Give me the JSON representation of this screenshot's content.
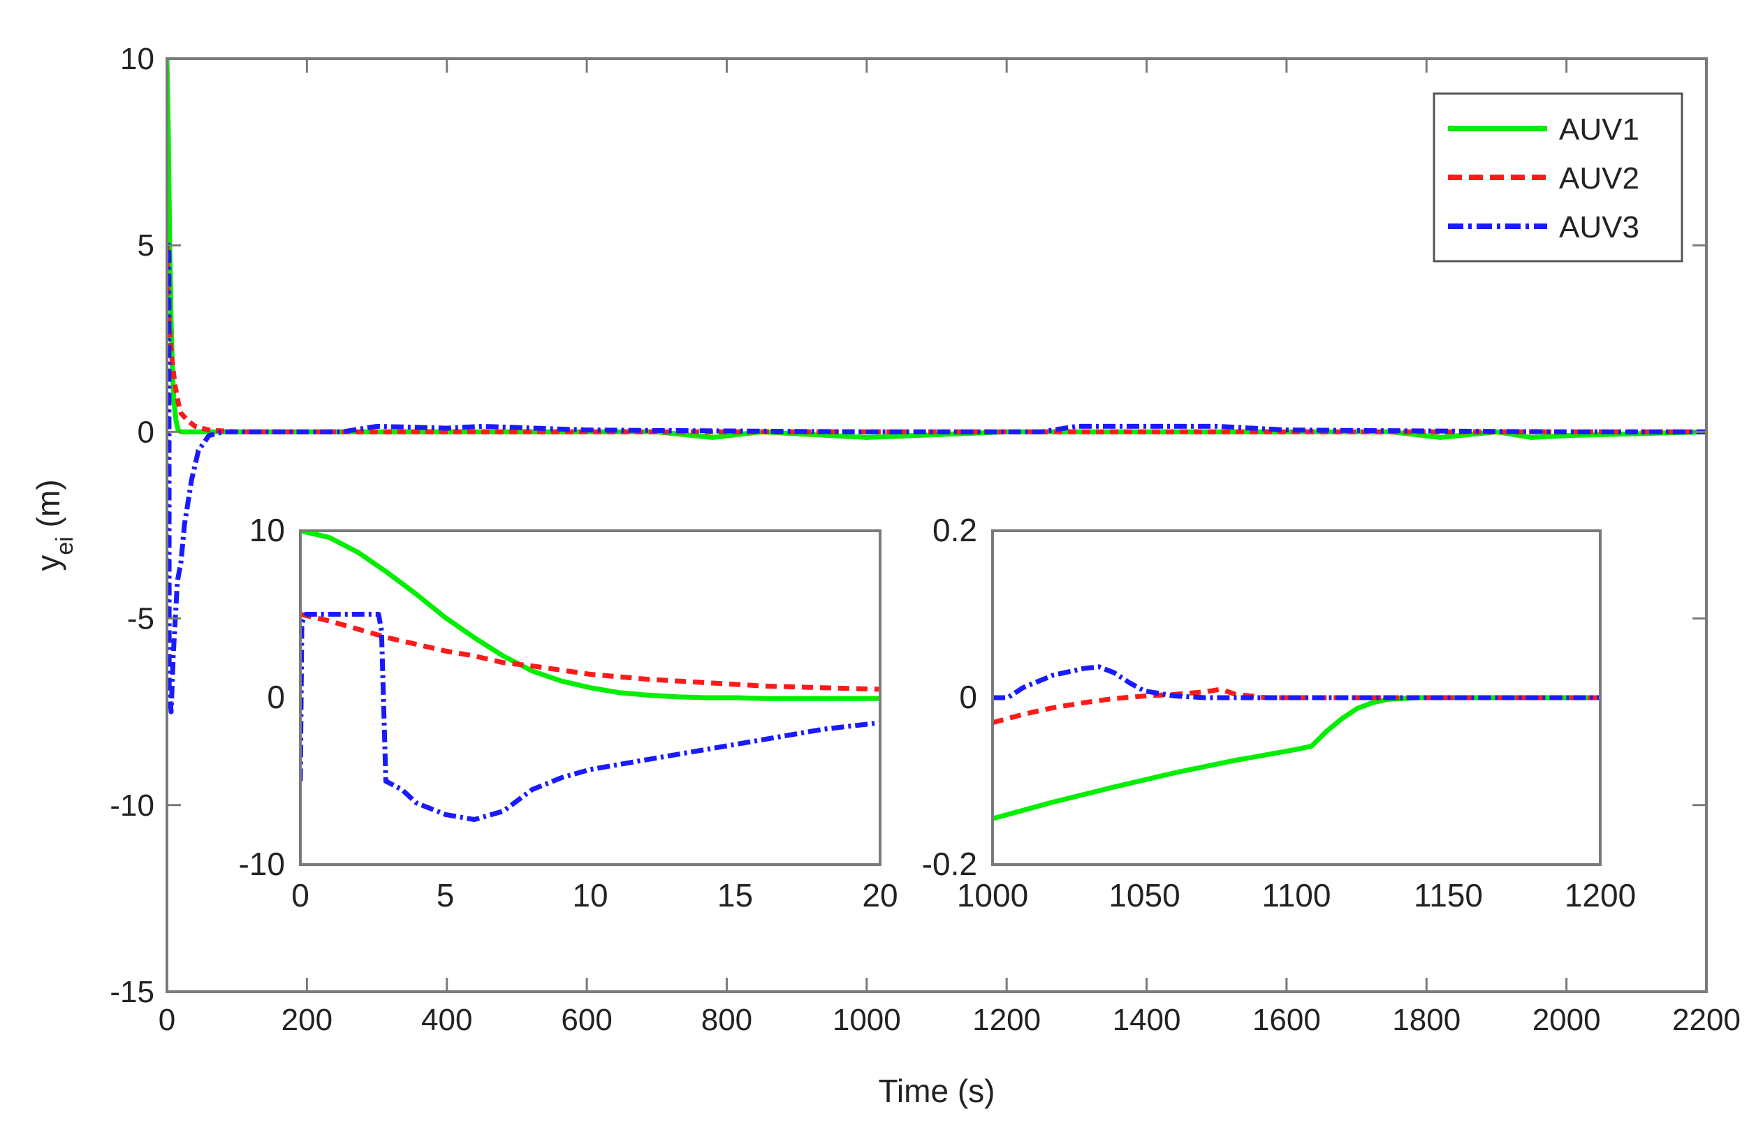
{
  "chart_data": [
    {
      "id": "main",
      "type": "line",
      "title": "",
      "xlabel": "Time (s)",
      "ylabel_main": "y",
      "ylabel_sub": "ei",
      "ylabel_unit": " (m)",
      "xlim": [
        0,
        2200
      ],
      "ylim": [
        -15,
        10
      ],
      "xticks": [
        0,
        200,
        400,
        600,
        800,
        1000,
        1200,
        1400,
        1600,
        1800,
        2000,
        2200
      ],
      "xtick_labels": [
        "0",
        "200",
        "400",
        "600",
        "800",
        "1000",
        "1200",
        "1400",
        "1600",
        "1800",
        "2000",
        "2200"
      ],
      "yticks": [
        -15,
        -10,
        -5,
        0,
        5,
        10
      ],
      "ytick_labels": [
        "-15",
        "-10",
        "-5",
        "0",
        "5",
        "10"
      ],
      "grid": false,
      "legend_position": "top-right",
      "series": [
        {
          "name": "AUV1",
          "color": "#00ee00",
          "dash": "solid",
          "x": [
            0,
            2,
            4,
            6,
            8,
            10,
            13,
            16,
            20,
            30,
            60,
            100,
            250,
            400,
            700,
            780,
            850,
            1000,
            1200,
            1400,
            1600,
            1750,
            1820,
            1900,
            1950,
            2000,
            2200
          ],
          "y": [
            10,
            8,
            5,
            3,
            1.6,
            0.8,
            0.3,
            0.05,
            0,
            0,
            0,
            0,
            0,
            0,
            0,
            -0.15,
            0,
            -0.15,
            0,
            0,
            0,
            0,
            -0.15,
            0,
            -0.15,
            -0.1,
            0
          ]
        },
        {
          "name": "AUV2",
          "color": "#ff1a1a",
          "dash": "12,8",
          "x": [
            0,
            1,
            3,
            5,
            8,
            12,
            16,
            20,
            30,
            40,
            60,
            100,
            300,
            600,
            800,
            1000,
            1200,
            1400,
            1600,
            2000,
            2200
          ],
          "y": [
            5,
            4,
            3,
            2.4,
            1.8,
            1.2,
            0.8,
            0.5,
            0.3,
            0.15,
            0.05,
            0,
            0,
            0,
            0,
            0,
            0,
            0,
            0,
            0,
            0
          ]
        },
        {
          "name": "AUV3",
          "color": "#1a1aff",
          "dash": "18,6,4,6",
          "x": [
            0,
            0.5,
            2.8,
            3.2,
            6,
            9,
            15,
            20,
            25,
            35,
            45,
            60,
            80,
            100,
            250,
            300,
            400,
            450,
            600,
            1000,
            1250,
            1300,
            1500,
            1600,
            2000,
            2200
          ],
          "y": [
            -5,
            5,
            5,
            -6.8,
            -7.5,
            -6,
            -4,
            -3.5,
            -2.5,
            -1.3,
            -0.5,
            -0.1,
            0,
            0,
            0,
            0.15,
            0.1,
            0.15,
            0.05,
            0,
            0,
            0.15,
            0.15,
            0.05,
            0,
            0
          ]
        }
      ]
    },
    {
      "id": "inset-left",
      "type": "line",
      "title": "",
      "xlabel": "",
      "ylabel": "",
      "xlim": [
        0,
        20
      ],
      "ylim": [
        -10,
        10
      ],
      "xticks": [
        0,
        5,
        10,
        15,
        20
      ],
      "xtick_labels": [
        "0",
        "5",
        "10",
        "15",
        "20"
      ],
      "yticks": [
        -10,
        0,
        10
      ],
      "ytick_labels": [
        "-10",
        "0",
        "10"
      ],
      "grid": false,
      "series": [
        {
          "name": "AUV1",
          "color": "#00ee00",
          "dash": "solid",
          "x": [
            0,
            1,
            2,
            3,
            4,
            5,
            6,
            7,
            8,
            9,
            10,
            11,
            12,
            13,
            14,
            15,
            16,
            17,
            18,
            19,
            20
          ],
          "y": [
            10,
            9.6,
            8.7,
            7.5,
            6.2,
            4.8,
            3.6,
            2.5,
            1.6,
            1,
            0.6,
            0.3,
            0.15,
            0.05,
            0,
            0,
            -0.05,
            -0.05,
            -0.05,
            -0.05,
            -0.05
          ]
        },
        {
          "name": "AUV2",
          "color": "#ff1a1a",
          "dash": "16,10",
          "x": [
            0,
            1,
            2,
            3,
            4,
            5,
            6,
            7,
            8,
            10,
            12,
            14,
            16,
            18,
            20
          ],
          "y": [
            5,
            4.6,
            4.1,
            3.6,
            3.2,
            2.8,
            2.5,
            2.1,
            1.9,
            1.4,
            1.1,
            0.9,
            0.7,
            0.6,
            0.5
          ]
        },
        {
          "name": "AUV3",
          "color": "#1a1aff",
          "dash": "18,6,4,6",
          "x": [
            0,
            0.05,
            0.2,
            1,
            2,
            2.7,
            2.8,
            2.95,
            3.5,
            4,
            5,
            6,
            7,
            8,
            9,
            10,
            12,
            14,
            16,
            18,
            20
          ],
          "y": [
            -5,
            4.5,
            5,
            5,
            5,
            5,
            4,
            -5,
            -5.5,
            -6.3,
            -7,
            -7.3,
            -6.8,
            -5.5,
            -4.8,
            -4.3,
            -3.7,
            -3.1,
            -2.5,
            -1.9,
            -1.5
          ]
        }
      ]
    },
    {
      "id": "inset-right",
      "type": "line",
      "title": "",
      "xlabel": "",
      "ylabel": "",
      "xlim": [
        1000,
        1200
      ],
      "ylim": [
        -0.2,
        0.2
      ],
      "xticks": [
        1000,
        1050,
        1100,
        1150,
        1200
      ],
      "xtick_labels": [
        "1000",
        "1050",
        "1100",
        "1150",
        "1200"
      ],
      "yticks": [
        -0.2,
        0,
        0.2
      ],
      "ytick_labels": [
        "-0.2",
        "0",
        "0.2"
      ],
      "grid": false,
      "series": [
        {
          "name": "AUV1",
          "color": "#00ee00",
          "dash": "solid",
          "x": [
            1000,
            1020,
            1040,
            1060,
            1080,
            1100,
            1105,
            1110,
            1115,
            1120,
            1125,
            1130,
            1140,
            1200
          ],
          "y": [
            -0.145,
            -0.125,
            -0.107,
            -0.09,
            -0.075,
            -0.062,
            -0.058,
            -0.04,
            -0.025,
            -0.013,
            -0.006,
            -0.002,
            0,
            0
          ]
        },
        {
          "name": "AUV2",
          "color": "#ff1a1a",
          "dash": "16,10",
          "x": [
            1000,
            1010,
            1020,
            1030,
            1040,
            1050,
            1060,
            1070,
            1075,
            1080,
            1090,
            1200
          ],
          "y": [
            -0.03,
            -0.02,
            -0.012,
            -0.006,
            -0.001,
            0.002,
            0.004,
            0.007,
            0.01,
            0.004,
            0,
            0
          ]
        },
        {
          "name": "AUV3",
          "color": "#1a1aff",
          "dash": "18,6,4,6",
          "x": [
            1000,
            1005,
            1010,
            1020,
            1030,
            1035,
            1040,
            1045,
            1050,
            1060,
            1070,
            1200
          ],
          "y": [
            0,
            0,
            0.012,
            0.027,
            0.035,
            0.037,
            0.03,
            0.018,
            0.008,
            0.002,
            0,
            0
          ]
        }
      ]
    }
  ]
}
